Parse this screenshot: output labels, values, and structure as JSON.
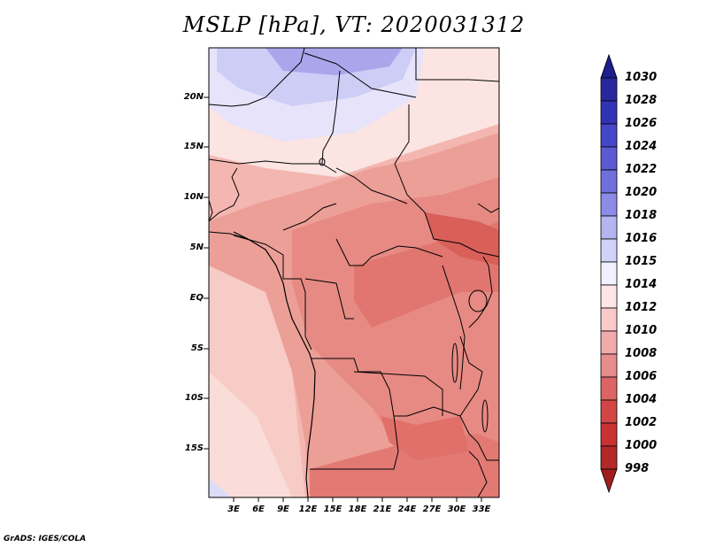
{
  "title": "MSLP [hPa], VT: 2020031312",
  "footer": "GrADS: IGES/COLA",
  "map": {
    "region": "Central / Southern Africa",
    "lat_labels": [
      "20N",
      "15N",
      "10N",
      "5N",
      "EQ",
      "5S",
      "10S",
      "15S"
    ],
    "lon_labels": [
      "3E",
      "6E",
      "9E",
      "12E",
      "15E",
      "18E",
      "21E",
      "24E",
      "27E",
      "30E",
      "33E"
    ]
  },
  "colorbar": {
    "levels": [
      "1030",
      "1028",
      "1026",
      "1024",
      "1022",
      "1020",
      "1018",
      "1016",
      "1015",
      "1014",
      "1012",
      "1010",
      "1008",
      "1006",
      "1004",
      "1002",
      "1000",
      "998"
    ],
    "colors": [
      "#1e1e8c",
      "#28289e",
      "#3232b4",
      "#4646c8",
      "#5a5ad2",
      "#7070dc",
      "#8c8ce6",
      "#b4b4f0",
      "#d2d2f8",
      "#f0f0ff",
      "#ffe6e6",
      "#f8caca",
      "#f0aaaa",
      "#e68c8c",
      "#dc6464",
      "#d24646",
      "#c83232",
      "#a01e1e"
    ]
  },
  "colors": {
    "ocean_south": "#f7c9c4",
    "land_main": "#e89088",
    "land_dark": "#e06c66",
    "north_blue": "#b8b8f0",
    "border": "#000000"
  }
}
